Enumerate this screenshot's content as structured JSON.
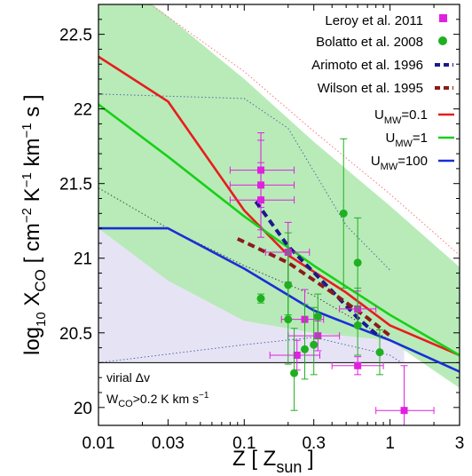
{
  "chart_data": {
    "type": "line",
    "title": "",
    "xlabel": "Z [ Z_sun ]",
    "ylabel": "log10 X_CO [ cm^-2 K^-1 km^-1 s ]",
    "xlabel_parts": {
      "main": "Z [ Z",
      "sub": "sun",
      "close": " ]"
    },
    "ylabel_parts": {
      "log": "log",
      "log_sub": "10",
      "x": " X",
      "x_sub": "CO",
      "unit": " [ cm",
      "e1": "−2",
      "k": " K",
      "e2": "−1",
      "km": " km",
      "e3": "−1",
      "s": " s ]"
    },
    "xscale": "log",
    "xlim": [
      0.01,
      3
    ],
    "ylim": [
      19.88,
      22.7
    ],
    "xticks": [
      0.01,
      0.03,
      0.1,
      0.3,
      1,
      3
    ],
    "xtick_labels": [
      "0.01",
      "0.03",
      "0.1",
      "0.3",
      "1",
      "3"
    ],
    "yticks": [
      20,
      20.5,
      21,
      21.5,
      22,
      22.5
    ],
    "ytick_labels": [
      "20",
      "20.5",
      "21",
      "21.5",
      "22",
      "22.5"
    ],
    "legend_position": "top-right",
    "green_band": {
      "color": "#b4eab4",
      "x": [
        0.01,
        0.03,
        0.1,
        0.3,
        1,
        3
      ],
      "upper": [
        22.97,
        22.62,
        22.2,
        21.78,
        21.35,
        20.94
      ],
      "lower": [
        21.2,
        20.85,
        20.58,
        20.5,
        20.45,
        20.13
      ]
    },
    "lavender_band": {
      "color": "#e6e4f4",
      "x": [
        0.01,
        0.1,
        0.3,
        1,
        1.25
      ],
      "upper": [
        21.2,
        21.2,
        20.9,
        20.57,
        20.45
      ],
      "lower": [
        20.3,
        20.3,
        20.3,
        20.3,
        20.3
      ]
    },
    "dotted_lines": [
      {
        "color": "#ff7777",
        "x": [
          0.01,
          0.1,
          0.3,
          1,
          3
        ],
        "y": [
          22.95,
          22.25,
          21.85,
          21.43,
          21.02
        ]
      },
      {
        "color": "#5566aa",
        "x": [
          0.01,
          0.1,
          0.2,
          0.5,
          1
        ],
        "y": [
          22.1,
          22.07,
          21.87,
          21.22,
          20.92
        ]
      },
      {
        "color": "#444444",
        "x": [
          0.01,
          0.03,
          0.1,
          0.3,
          1
        ],
        "y": [
          21.47,
          21.2,
          20.95,
          20.75,
          20.45
        ]
      },
      {
        "color": "#5566aa",
        "x": [
          0.01,
          0.1,
          0.3,
          1,
          1.2
        ],
        "y": [
          20.3,
          20.42,
          20.47,
          20.35,
          20.3
        ]
      }
    ],
    "series": [
      {
        "name": "U_MW=0.1",
        "label_main": "U",
        "label_sub": "MW",
        "label_tail": "=0.1",
        "color": "#e81c1c",
        "x": [
          0.01,
          0.03,
          0.1,
          0.2,
          0.5,
          1,
          3
        ],
        "y": [
          22.35,
          22.05,
          21.32,
          21.02,
          20.77,
          20.55,
          20.35
        ]
      },
      {
        "name": "U_MW=1",
        "label_main": "U",
        "label_sub": "MW",
        "label_tail": "=1",
        "color": "#19d019",
        "x": [
          0.01,
          0.03,
          0.1,
          0.3,
          1,
          3
        ],
        "y": [
          22.03,
          21.68,
          21.28,
          20.95,
          20.62,
          20.35
        ]
      },
      {
        "name": "U_MW=100",
        "label_main": "U",
        "label_sub": "MW",
        "label_tail": "=100",
        "color": "#1a2ed6",
        "x": [
          0.01,
          0.03,
          0.1,
          0.3,
          1,
          3
        ],
        "y": [
          21.2,
          21.2,
          20.93,
          20.65,
          20.45,
          20.24
        ]
      }
    ],
    "dashed_series": [
      {
        "name": "Arimoto et al. 1996",
        "color": "#1a1a8c",
        "x": [
          0.12,
          0.2,
          0.4,
          0.6,
          0.85
        ],
        "y": [
          21.38,
          21.08,
          20.78,
          20.6,
          20.47
        ]
      },
      {
        "name": "Wilson et al. 1995",
        "color": "#8c1a1a",
        "x": [
          0.09,
          0.2,
          0.4,
          0.7,
          1.0
        ],
        "y": [
          21.13,
          20.97,
          20.77,
          20.6,
          20.48
        ]
      }
    ],
    "scatter_series": [
      {
        "name": "Leroy et al. 2011",
        "color": "#e020e0",
        "marker": "square",
        "points": [
          {
            "x": 0.13,
            "y": 21.59,
            "xerr": [
              0.08,
              0.22
            ],
            "yerr": [
              0.25,
              0.25
            ]
          },
          {
            "x": 0.13,
            "y": 21.49,
            "xerr": [
              0.08,
              0.22
            ],
            "yerr": [
              0.3,
              0.3
            ]
          },
          {
            "x": 0.13,
            "y": 21.39,
            "xerr": [
              0.08,
              0.22
            ],
            "yerr": [
              0.25,
              0.25
            ]
          },
          {
            "x": 0.2,
            "y": 21.04,
            "xerr": [
              0.14,
              0.28
            ],
            "yerr": [
              0.2,
              0.2
            ]
          },
          {
            "x": 0.26,
            "y": 20.59,
            "xerr": [
              0.18,
              0.35
            ],
            "yerr": [
              0.2,
              0.2
            ]
          },
          {
            "x": 0.23,
            "y": 20.35,
            "xerr": [
              0.15,
              0.33
            ],
            "yerr": [
              0.1,
              0.1
            ]
          },
          {
            "x": 0.32,
            "y": 20.48,
            "xerr": [
              0.2,
              0.45
            ],
            "yerr": [
              0.1,
              0.1
            ]
          },
          {
            "x": 0.6,
            "y": 20.66,
            "xerr": [
              0.45,
              0.8
            ],
            "yerr": [
              0.12,
              0.12
            ]
          },
          {
            "x": 0.6,
            "y": 20.28,
            "xerr": [
              0.4,
              0.9
            ],
            "yerr": [
              0.06,
              0.06
            ]
          },
          {
            "x": 1.25,
            "y": 19.98,
            "xerr": [
              0.8,
              2.0
            ],
            "yerr": [
              0.3,
              0.3
            ]
          }
        ]
      },
      {
        "name": "Bolatto et al. 2008",
        "color": "#1fb01f",
        "marker": "circle",
        "points": [
          {
            "x": 0.13,
            "y": 20.73,
            "yerr": [
              0.03,
              0.03
            ]
          },
          {
            "x": 0.2,
            "y": 20.82,
            "yerr": [
              0.2,
              0.35
            ]
          },
          {
            "x": 0.2,
            "y": 20.59,
            "yerr": [
              0.3,
              0.45
            ]
          },
          {
            "x": 0.22,
            "y": 20.23,
            "yerr": [
              0.25,
              0.3
            ]
          },
          {
            "x": 0.26,
            "y": 20.39,
            "yerr": [
              0.2,
              0.3
            ]
          },
          {
            "x": 0.3,
            "y": 20.42,
            "yerr": [
              0.2,
              0.25
            ]
          },
          {
            "x": 0.32,
            "y": 20.61,
            "yerr": [
              0.15,
              0.15
            ]
          },
          {
            "x": 0.48,
            "y": 21.3,
            "yerr": [
              0.5,
              0.5
            ]
          },
          {
            "x": 0.6,
            "y": 20.97,
            "yerr": [
              0.3,
              0.3
            ]
          },
          {
            "x": 0.6,
            "y": 20.55,
            "yerr": [
              0.2,
              0.25
            ]
          },
          {
            "x": 0.85,
            "y": 20.37,
            "yerr": [
              0.15,
              0.15
            ]
          }
        ]
      }
    ],
    "hline": {
      "y": 20.3,
      "color": "#000000"
    },
    "annotation": {
      "line1": "virial Δv",
      "line2_main": "W",
      "line2_sub": "CO",
      "line2_tail": ">0.2 K km s",
      "line2_sup": "−1"
    },
    "legend": [
      {
        "label": "Leroy et al. 2011",
        "color": "#e020e0",
        "marker": "square"
      },
      {
        "label": "Bolatto et al. 2008",
        "color": "#1fb01f",
        "marker": "circle"
      },
      {
        "label": "Arimoto et al. 1996",
        "color": "#1a1a8c",
        "marker": "dash"
      },
      {
        "label": "Wilson et al. 1995",
        "color": "#8c1a1a",
        "marker": "dash"
      }
    ]
  }
}
